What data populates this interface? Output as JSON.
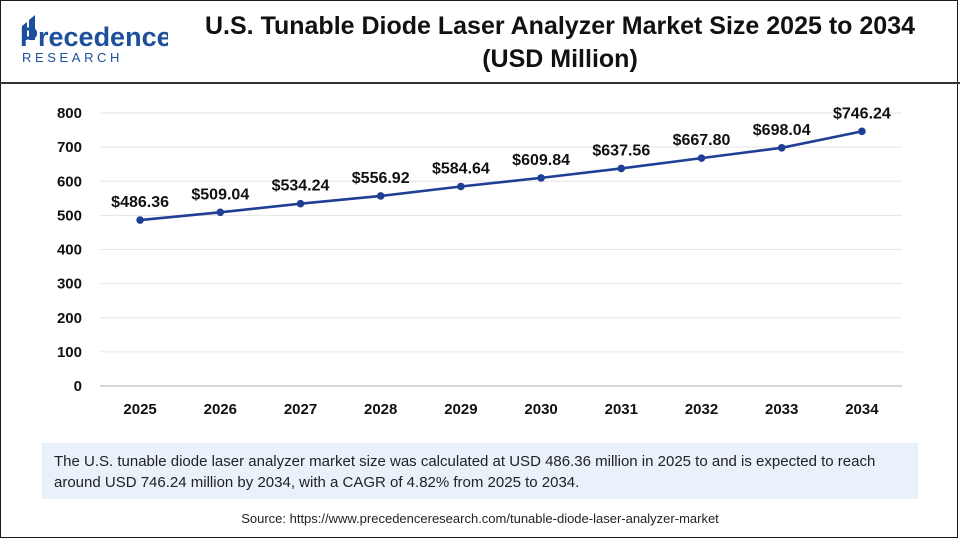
{
  "brand": {
    "line1": "Precedence",
    "line2": "RESEARCH",
    "color": "#1c4f9c"
  },
  "colors": {
    "series": "#1f3f94",
    "text": "#111111",
    "grid": "#e6e6e6"
  },
  "chart_data": {
    "type": "line",
    "title": "U.S. Tunable Diode Laser Analyzer Market Size 2025 to 2034",
    "subtitle": "(USD Million)",
    "categories": [
      "2025",
      "2026",
      "2027",
      "2028",
      "2029",
      "2030",
      "2031",
      "2032",
      "2033",
      "2034"
    ],
    "series": [
      {
        "name": "Market Size (USD Million)",
        "values": [
          486.36,
          509.04,
          534.24,
          556.92,
          584.64,
          609.84,
          637.56,
          667.8,
          698.04,
          746.24
        ],
        "labels": [
          "$486.36",
          "$509.04",
          "$534.24",
          "$556.92",
          "$584.64",
          "$609.84",
          "$637.56",
          "$667.80",
          "$698.04",
          "$746.24"
        ]
      }
    ],
    "yticks": [
      "0",
      "100",
      "200",
      "300",
      "400",
      "500",
      "600",
      "700",
      "800"
    ],
    "ylim": [
      0,
      800
    ],
    "xlabel": "",
    "ylabel": "",
    "grid": true,
    "legend": "none"
  },
  "summary": "The U.S. tunable diode laser analyzer market size was calculated at USD 486.36 million in 2025 to and is expected to reach around USD 746.24 million by 2034, with a CAGR of 4.82% from 2025 to 2034.",
  "source": "Source: https://www.precedenceresearch.com/tunable-diode-laser-analyzer-market"
}
